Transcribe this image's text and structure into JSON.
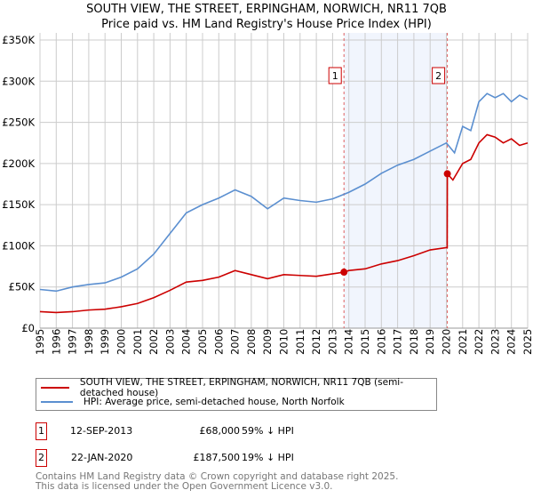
{
  "chart_data": {
    "type": "line",
    "title": "SOUTH VIEW, THE STREET, ERPINGHAM, NORWICH, NR11 7QB",
    "subtitle": "Price paid vs. HM Land Registry's House Price Index (HPI)",
    "ylim": [
      0,
      350000
    ],
    "xlim": [
      1995,
      2025
    ],
    "y_ticks": [
      {
        "v": 0,
        "label": "£0"
      },
      {
        "v": 50000,
        "label": "£50K"
      },
      {
        "v": 100000,
        "label": "£100K"
      },
      {
        "v": 150000,
        "label": "£150K"
      },
      {
        "v": 200000,
        "label": "£200K"
      },
      {
        "v": 250000,
        "label": "£250K"
      },
      {
        "v": 300000,
        "label": "£300K"
      },
      {
        "v": 350000,
        "label": "£350K"
      }
    ],
    "x_ticks": [
      "1995",
      "1996",
      "1997",
      "1998",
      "1999",
      "2000",
      "2001",
      "2002",
      "2003",
      "2004",
      "2005",
      "2006",
      "2007",
      "2008",
      "2009",
      "2010",
      "2011",
      "2012",
      "2013",
      "2014",
      "2015",
      "2016",
      "2017",
      "2018",
      "2019",
      "2020",
      "2021",
      "2022",
      "2023",
      "2024",
      "2025"
    ],
    "grid": true,
    "series": [
      {
        "name": "SOUTH VIEW, THE STREET, ERPINGHAM, NORWICH, NR11 7QB (semi-detached house)",
        "color": "#cc0000",
        "x": [
          1995,
          1996,
          1997,
          1998,
          1999,
          2000,
          2001,
          2002,
          2003,
          2004,
          2005,
          2006,
          2007,
          2008,
          2009,
          2010,
          2011,
          2012,
          2013,
          2013.7,
          2014,
          2015,
          2016,
          2017,
          2018,
          2019,
          2020.05,
          2020.06,
          2020.4,
          2021,
          2021.5,
          2022,
          2022.5,
          2023,
          2023.5,
          2024,
          2024.5,
          2025
        ],
        "y": [
          20000,
          19000,
          20000,
          22000,
          23000,
          26000,
          30000,
          37000,
          46000,
          56000,
          58000,
          62000,
          70000,
          65000,
          60000,
          65000,
          64000,
          63000,
          66000,
          68000,
          70000,
          72000,
          78000,
          82000,
          88000,
          95000,
          98000,
          187500,
          180000,
          200000,
          205000,
          225000,
          235000,
          232000,
          225000,
          230000,
          222000,
          225000
        ]
      },
      {
        "name": "HPI: Average price, semi-detached house, North Norfolk",
        "color": "#5b8fd0",
        "x": [
          1995,
          1996,
          1997,
          1998,
          1999,
          2000,
          2001,
          2002,
          2003,
          2004,
          2005,
          2006,
          2007,
          2008,
          2009,
          2010,
          2011,
          2012,
          2013,
          2014,
          2015,
          2016,
          2017,
          2018,
          2019,
          2020,
          2020.5,
          2021,
          2021.5,
          2022,
          2022.5,
          2023,
          2023.5,
          2024,
          2024.5,
          2025
        ],
        "y": [
          47000,
          45000,
          50000,
          53000,
          55000,
          62000,
          72000,
          90000,
          115000,
          140000,
          150000,
          158000,
          168000,
          160000,
          145000,
          158000,
          155000,
          153000,
          157000,
          165000,
          175000,
          188000,
          198000,
          205000,
          215000,
          225000,
          213000,
          245000,
          240000,
          275000,
          285000,
          280000,
          285000,
          275000,
          283000,
          278000
        ]
      }
    ],
    "annotations": [
      {
        "label": "1",
        "x": 2013.7,
        "y": 68000,
        "date": "12-SEP-2013",
        "price": "£68,000",
        "hpi": "59% ↓ HPI"
      },
      {
        "label": "2",
        "x": 2020.06,
        "y": 187500,
        "date": "22-JAN-2020",
        "price": "£187,500",
        "hpi": "19% ↓ HPI"
      }
    ],
    "legend_placement": "below"
  },
  "footer": [
    "Contains HM Land Registry data © Crown copyright and database right 2025.",
    "This data is licensed under the Open Government Licence v3.0."
  ]
}
